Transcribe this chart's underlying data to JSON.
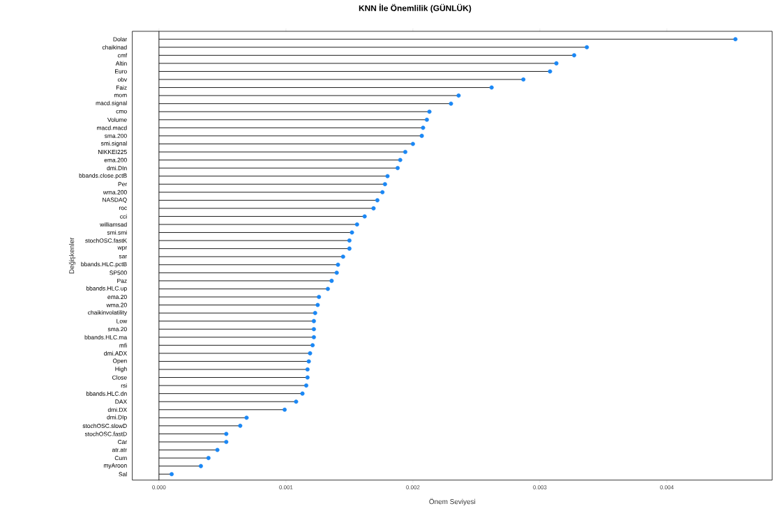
{
  "chart_data": {
    "type": "lollipop",
    "orientation": "horizontal",
    "title": "KNN İle Önemlilik (GÜNLÜK)",
    "xlabel": "Önem Seviyesi",
    "ylabel": "Değişkenler",
    "categories": [
      "Dolar",
      "chaikinad",
      "cmf",
      "Altin",
      "Euro",
      "obv",
      "Faiz",
      "mom",
      "macd.signal",
      "cmo",
      "Volume",
      "macd.macd",
      "sma.200",
      "smi.signal",
      "NIKKEI225",
      "ema.200",
      "dmi.DIn",
      "bbands.close.pctB",
      "Per",
      "wma.200",
      "NASDAQ",
      "roc",
      "cci",
      "williamsad",
      "smi.smi",
      "stochOSC.fastK",
      "wpr",
      "sar",
      "bbands.HLC.pctB",
      "SP500",
      "Paz",
      "bbands.HLC.up",
      "ema.20",
      "wma.20",
      "chaikinvolatility",
      "Low",
      "sma.20",
      "bbands.HLC.ma",
      "mfi",
      "dmi.ADX",
      "Open",
      "High",
      "Close",
      "rsi",
      "bbands.HLC.dn",
      "DAX",
      "dmi.DX",
      "dmi.DIp",
      "stochOSC.slowD",
      "stochOSC.fastD",
      "Car",
      "atr.atr",
      "Cum",
      "myAroon",
      "Sal"
    ],
    "values": [
      0.00454,
      0.00337,
      0.00327,
      0.00313,
      0.00308,
      0.00287,
      0.00262,
      0.00236,
      0.0023,
      0.00213,
      0.00211,
      0.00208,
      0.00207,
      0.002,
      0.00194,
      0.0019,
      0.00188,
      0.0018,
      0.00178,
      0.00176,
      0.00172,
      0.00169,
      0.00162,
      0.00156,
      0.00152,
      0.0015,
      0.0015,
      0.00145,
      0.00141,
      0.0014,
      0.00136,
      0.00133,
      0.00126,
      0.00125,
      0.00123,
      0.00122,
      0.00122,
      0.00122,
      0.00121,
      0.00119,
      0.00118,
      0.00117,
      0.00117,
      0.00116,
      0.00113,
      0.00108,
      0.00099,
      0.00069,
      0.00064,
      0.00053,
      0.00053,
      0.00046,
      0.00039,
      0.00033,
      0.0001
    ],
    "color": "#1a87f5",
    "marker": "circle",
    "xlim": [
      -0.00021,
      0.00483
    ],
    "xticks": [
      {
        "value": 0,
        "label": "0.000"
      },
      {
        "value": 0.001,
        "label": "0.001"
      },
      {
        "value": 0.002,
        "label": "0.002"
      },
      {
        "value": 0.003,
        "label": "0.003"
      },
      {
        "value": 0.004,
        "label": "0.004"
      }
    ],
    "ref_lines": [
      {
        "axis": "x",
        "value": 0
      }
    ]
  }
}
